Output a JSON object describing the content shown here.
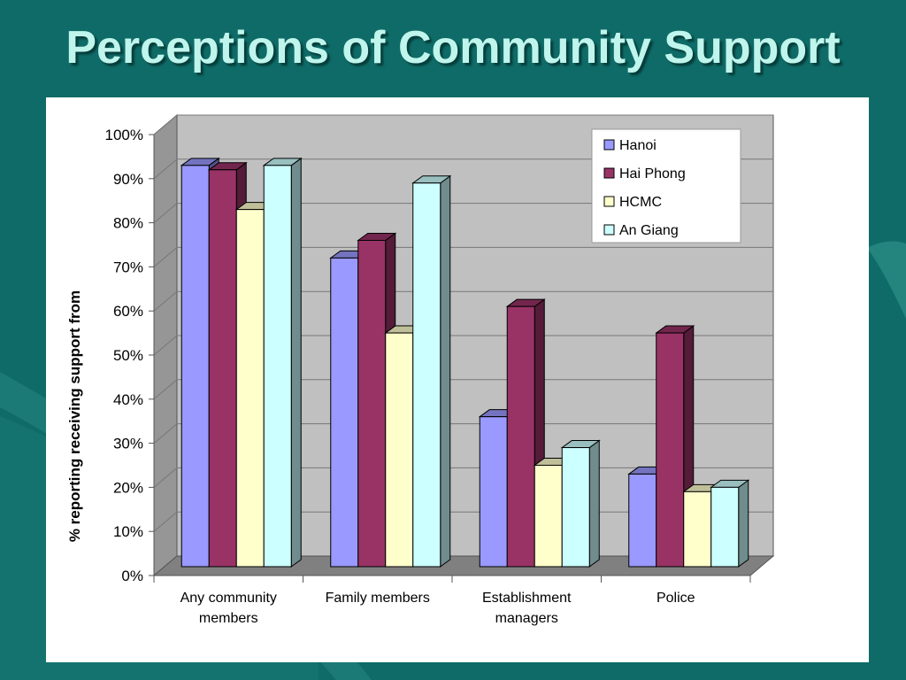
{
  "slide": {
    "title": "Perceptions of Community Support"
  },
  "chart_data": {
    "type": "bar",
    "categories": [
      [
        "Any community",
        "members"
      ],
      [
        "Family members"
      ],
      [
        "Establishment",
        "managers"
      ],
      [
        "Police"
      ]
    ],
    "series": [
      {
        "name": "Hanoi",
        "color": "#9999ff",
        "values": [
          91,
          70,
          34,
          21
        ]
      },
      {
        "name": "Hai Phong",
        "color": "#993366",
        "values": [
          90,
          74,
          59,
          53
        ]
      },
      {
        "name": "HCMC",
        "color": "#ffffcc",
        "values": [
          81,
          53,
          23,
          17
        ]
      },
      {
        "name": "An Giang",
        "color": "#ccffff",
        "values": [
          91,
          87,
          27,
          18
        ]
      }
    ],
    "title": "",
    "xlabel": "",
    "ylabel": "% reporting receiving support from",
    "ylim": [
      0,
      100
    ],
    "yticks": [
      "0%",
      "10%",
      "20%",
      "30%",
      "40%",
      "50%",
      "60%",
      "70%",
      "80%",
      "90%",
      "100%"
    ],
    "grid": true,
    "legend": "top-right",
    "wall_color": "#c0c0c0",
    "floor_color": "#808080"
  }
}
